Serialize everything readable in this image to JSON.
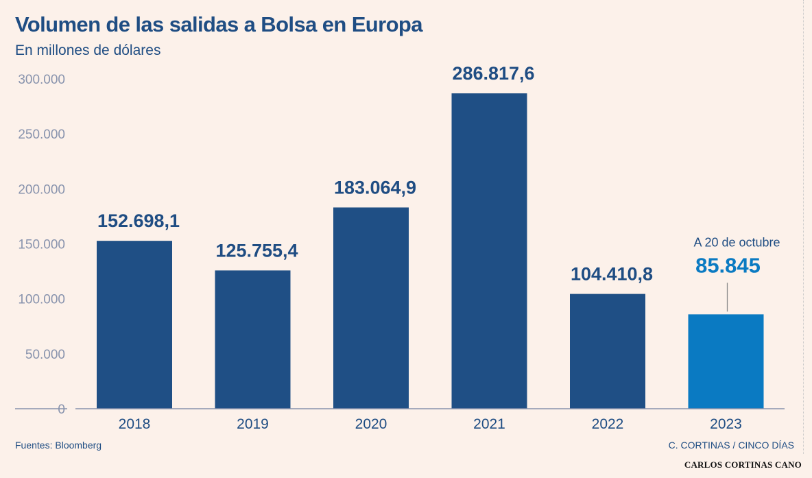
{
  "header": {
    "title": "Volumen de las salidas a Bolsa en Europa",
    "subtitle": "En millones de dólares"
  },
  "footer": {
    "source": "Fuentes: Bloomberg",
    "credit": "C. CORTINAS / CINCO DÍAS",
    "signature": "CARLOS CORTINAS CANO"
  },
  "colors": {
    "bar": "#1f4f85",
    "highlight_bar": "#0a7ac2",
    "text": "#1f4d83",
    "tick": "#8893ad",
    "background": "#fcf1ea"
  },
  "chart_data": {
    "type": "bar",
    "title": "Volumen de las salidas a Bolsa en Europa",
    "subtitle": "En millones de dólares",
    "xlabel": "",
    "ylabel": "",
    "categories": [
      "2018",
      "2019",
      "2020",
      "2021",
      "2022",
      "2023"
    ],
    "values": [
      152698.1,
      125755.4,
      183064.9,
      286817.6,
      104410.8,
      85845
    ],
    "value_labels": [
      "152.698,1",
      "125.755,4",
      "183.064,9",
      "286.817,6",
      "104.410,8",
      "85.845"
    ],
    "ylim": [
      0,
      300000
    ],
    "yticks": [
      0,
      50000,
      100000,
      150000,
      200000,
      250000,
      300000
    ],
    "ytick_labels": [
      "0",
      "50.000",
      "100.000",
      "150.000",
      "200.000",
      "250.000",
      "300.000"
    ],
    "grid": false,
    "highlight_index": 5,
    "annotation": "A 20 de octubre"
  }
}
